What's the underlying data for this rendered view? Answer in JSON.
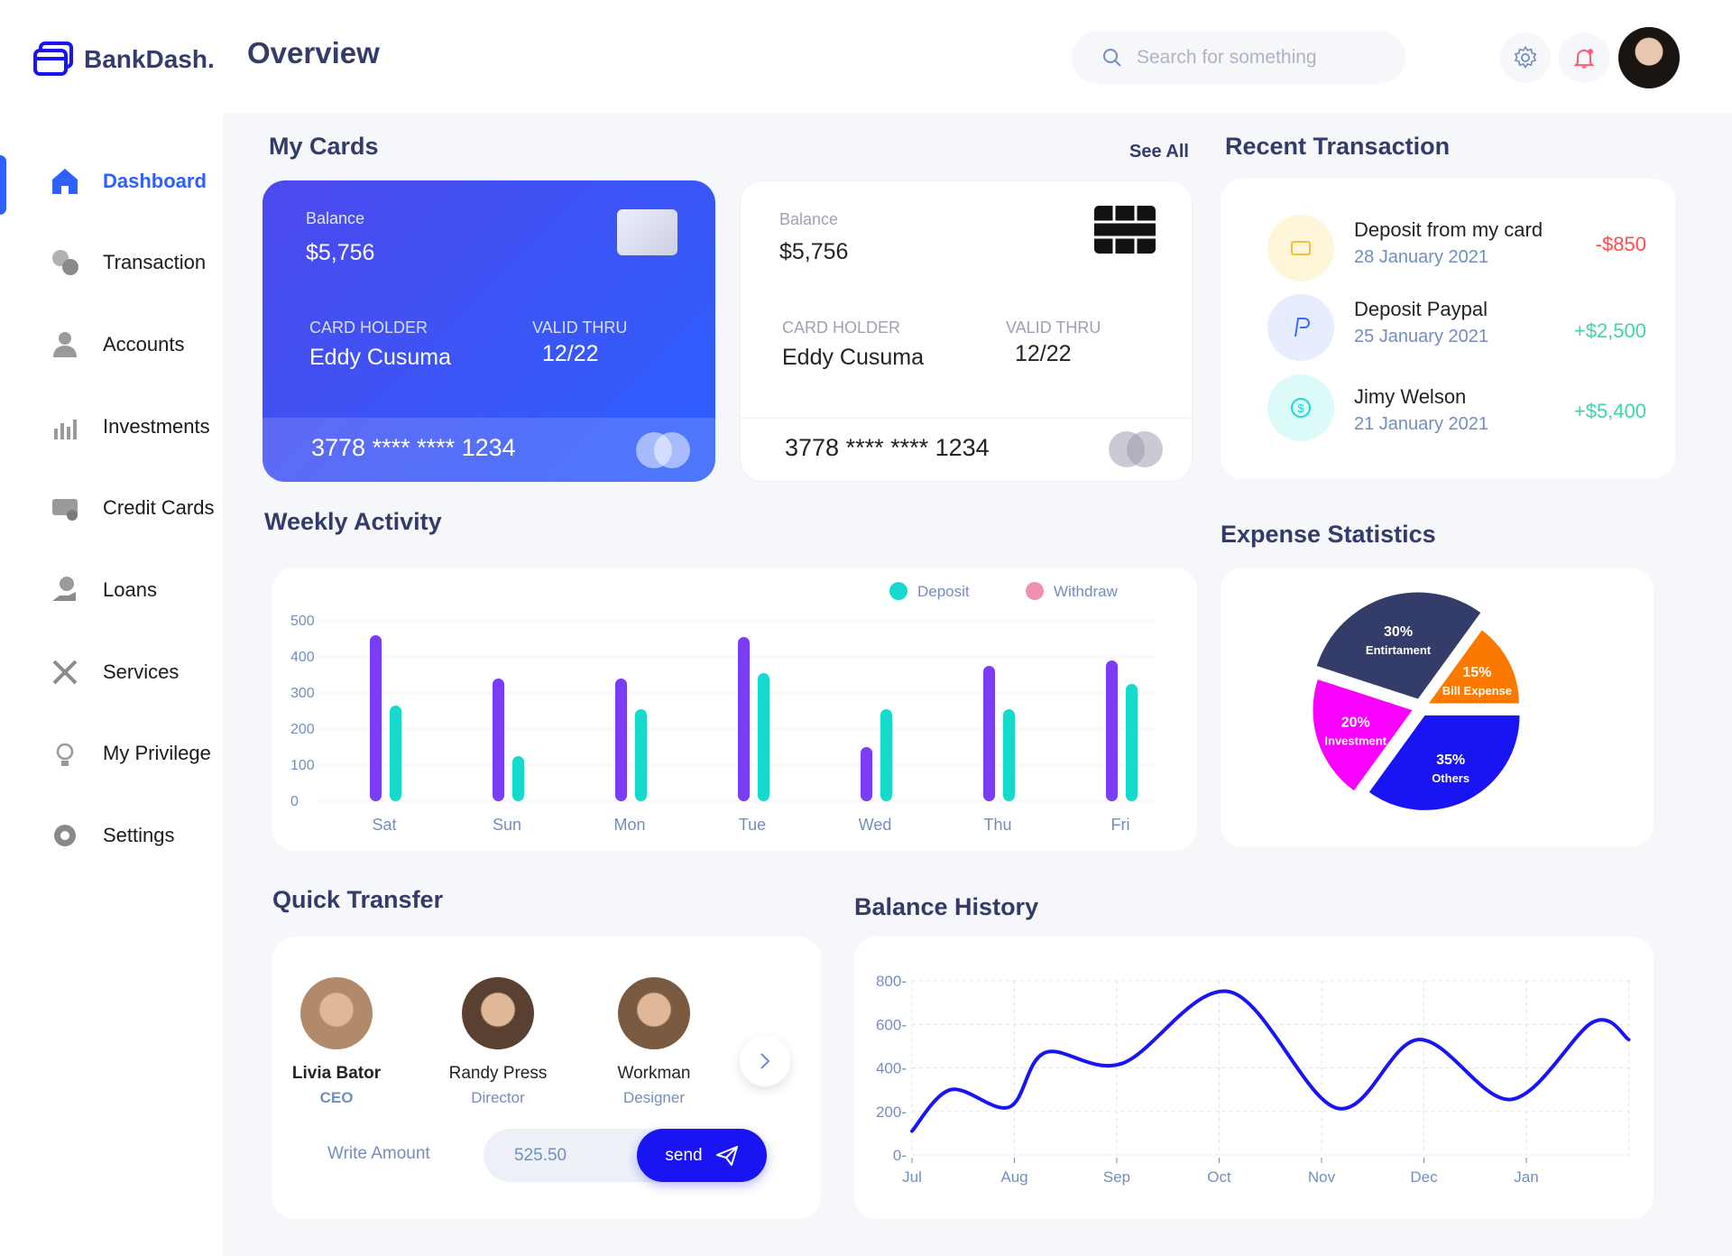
{
  "brand": "BankDash.",
  "header": {
    "title": "Overview",
    "search_placeholder": "Search for something"
  },
  "sidebar": {
    "items": [
      {
        "label": "Dashboard",
        "icon": "home-icon",
        "active": true
      },
      {
        "label": "Transaction",
        "icon": "transaction-icon"
      },
      {
        "label": "Accounts",
        "icon": "user-icon"
      },
      {
        "label": "Investments",
        "icon": "investment-chart-icon"
      },
      {
        "label": "Credit Cards",
        "icon": "credit-card-icon"
      },
      {
        "label": "Loans",
        "icon": "loan-icon"
      },
      {
        "label": "Services",
        "icon": "tools-icon"
      },
      {
        "label": "My Privilege",
        "icon": "lightbulb-icon"
      },
      {
        "label": "Settings",
        "icon": "gear-icon"
      }
    ]
  },
  "my_cards": {
    "title": "My Cards",
    "see_all": "See All",
    "cards": [
      {
        "balance_label": "Balance",
        "balance": "$5,756",
        "holder_label": "CARD HOLDER",
        "holder": "Eddy Cusuma",
        "valid_label": "VALID THRU",
        "valid": "12/22",
        "number": "3778 **** **** 1234"
      },
      {
        "balance_label": "Balance",
        "balance": "$5,756",
        "holder_label": "CARD HOLDER",
        "holder": "Eddy Cusuma",
        "valid_label": "VALID THRU",
        "valid": "12/22",
        "number": "3778 **** **** 1234"
      }
    ]
  },
  "recent": {
    "title": "Recent Transaction",
    "items": [
      {
        "name": "Deposit from my card",
        "date": "28 January 2021",
        "amount": "-$850",
        "color": "#ff4b4a",
        "bg": "#fff5d9",
        "icon": "card-icon"
      },
      {
        "name": "Deposit Paypal",
        "date": "25 January 2021",
        "amount": "+$2,500",
        "color": "#41d4a8",
        "bg": "#e7edff",
        "icon": "paypal-icon"
      },
      {
        "name": "Jimy Welson",
        "date": "21 January 2021",
        "amount": "+$5,400",
        "color": "#41d4a8",
        "bg": "#dcfaf8",
        "icon": "dollar-icon"
      }
    ]
  },
  "chart_data": [
    {
      "type": "bar",
      "title": "Weekly Activity",
      "categories": [
        "Sat",
        "Sun",
        "Mon",
        "Tue",
        "Wed",
        "Thu",
        "Fri"
      ],
      "series": [
        {
          "name": "Withdraw",
          "values": [
            460,
            340,
            340,
            455,
            150,
            375,
            390
          ],
          "color": "#7a3cf5",
          "legend_color": "#f08fb2"
        },
        {
          "name": "Deposit",
          "values": [
            265,
            125,
            255,
            355,
            255,
            255,
            325
          ],
          "color": "#16dbcc",
          "legend_color": "#16dbcc"
        }
      ],
      "yticks": [
        0,
        100,
        200,
        300,
        400,
        500
      ],
      "ylim": [
        0,
        500
      ],
      "legend": [
        "Deposit",
        "Withdraw"
      ]
    },
    {
      "type": "pie",
      "title": "Expense Statistics",
      "slices": [
        {
          "label": "Bill Expense",
          "value": 15,
          "color": "#fc7900"
        },
        {
          "label": "Others",
          "value": 35,
          "color": "#1814f3"
        },
        {
          "label": "Investment",
          "value": 20,
          "color": "#fa00ff"
        },
        {
          "label": "Entirtament",
          "value": 30,
          "color": "#343c6a"
        }
      ]
    },
    {
      "type": "line",
      "title": "Balance History",
      "x_labels": [
        "Jul",
        "Aug",
        "Sep",
        "Oct",
        "Nov",
        "Dec",
        "Jan"
      ],
      "points": [
        [
          0,
          110
        ],
        [
          0.38,
          300
        ],
        [
          0.95,
          220
        ],
        [
          1.3,
          470
        ],
        [
          2.05,
          420
        ],
        [
          3.1,
          750
        ],
        [
          4.15,
          215
        ],
        [
          4.95,
          530
        ],
        [
          5.85,
          255
        ],
        [
          6.65,
          610
        ],
        [
          7,
          530
        ]
      ],
      "yticks": [
        0,
        200,
        400,
        600,
        800
      ],
      "ylim": [
        0,
        800
      ],
      "color": "#1814f3"
    }
  ],
  "quick_transfer": {
    "title": "Quick Transfer",
    "people": [
      {
        "name": "Livia Bator",
        "role": "CEO",
        "color": "#b08a6a"
      },
      {
        "name": "Randy Press",
        "role": "Director",
        "color": "#5a4030"
      },
      {
        "name": "Workman",
        "role": "Designer",
        "color": "#7a5a40"
      }
    ],
    "amount_label": "Write Amount",
    "amount": "525.50",
    "send": "send"
  },
  "expense_title": "Expense Statistics",
  "weekly_title": "Weekly Activity",
  "balance_title": "Balance History"
}
